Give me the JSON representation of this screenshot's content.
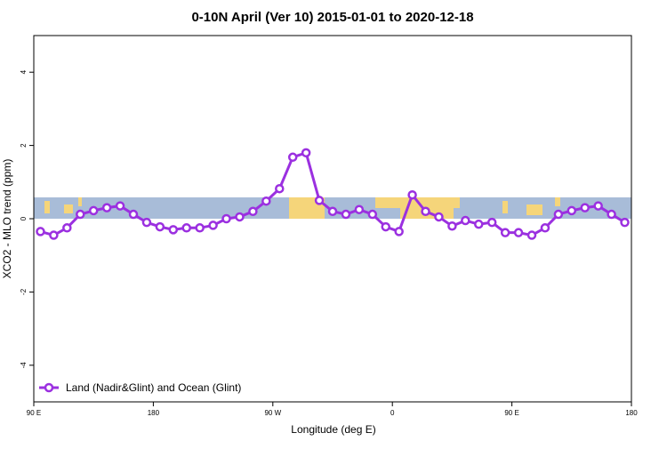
{
  "chart_data": {
    "type": "line",
    "title": "0-10N April (Ver 10)   2015-01-01 to 2020-12-18",
    "x_label": "Longitude (deg E)",
    "y_label": "XCO2 - MLO trend (ppm)",
    "xlim": [
      90,
      540
    ],
    "ylim": [
      -5,
      5
    ],
    "xticks": [
      {
        "value": 90,
        "label": "90 E"
      },
      {
        "value": 180,
        "label": "180"
      },
      {
        "value": 270,
        "label": "90 W"
      },
      {
        "value": 360,
        "label": "0"
      },
      {
        "value": 450,
        "label": "90 E"
      },
      {
        "value": 540,
        "label": "180"
      }
    ],
    "yticks": [
      -4,
      -2,
      0,
      2,
      4
    ],
    "legend": "bottom-left",
    "x": [
      95,
      105,
      115,
      125,
      135,
      145,
      155,
      165,
      175,
      185,
      195,
      205,
      215,
      225,
      235,
      245,
      255,
      265,
      275,
      285,
      295,
      305,
      315,
      325,
      335,
      345,
      355,
      365,
      375,
      385,
      395,
      405,
      415,
      425,
      435,
      445,
      455,
      465,
      475,
      485,
      495,
      505,
      515,
      525,
      535
    ],
    "series": [
      {
        "name": "Land (Nadir&Glint) and Ocean (Glint)",
        "color": "#9b30e0",
        "values": [
          -0.35,
          -0.45,
          -0.25,
          0.12,
          0.22,
          0.3,
          0.35,
          0.12,
          -0.1,
          -0.22,
          -0.3,
          -0.25,
          -0.25,
          -0.18,
          0.0,
          0.05,
          0.2,
          0.48,
          0.82,
          1.68,
          1.8,
          0.5,
          0.2,
          0.12,
          0.25,
          0.12,
          -0.22,
          -0.35,
          0.65,
          0.2,
          0.05,
          -0.2,
          -0.05,
          -0.15,
          -0.1,
          -0.38,
          -0.38,
          -0.45,
          -0.25,
          0.12,
          0.22,
          0.3,
          0.35,
          0.12,
          -0.1
        ]
      }
    ]
  }
}
